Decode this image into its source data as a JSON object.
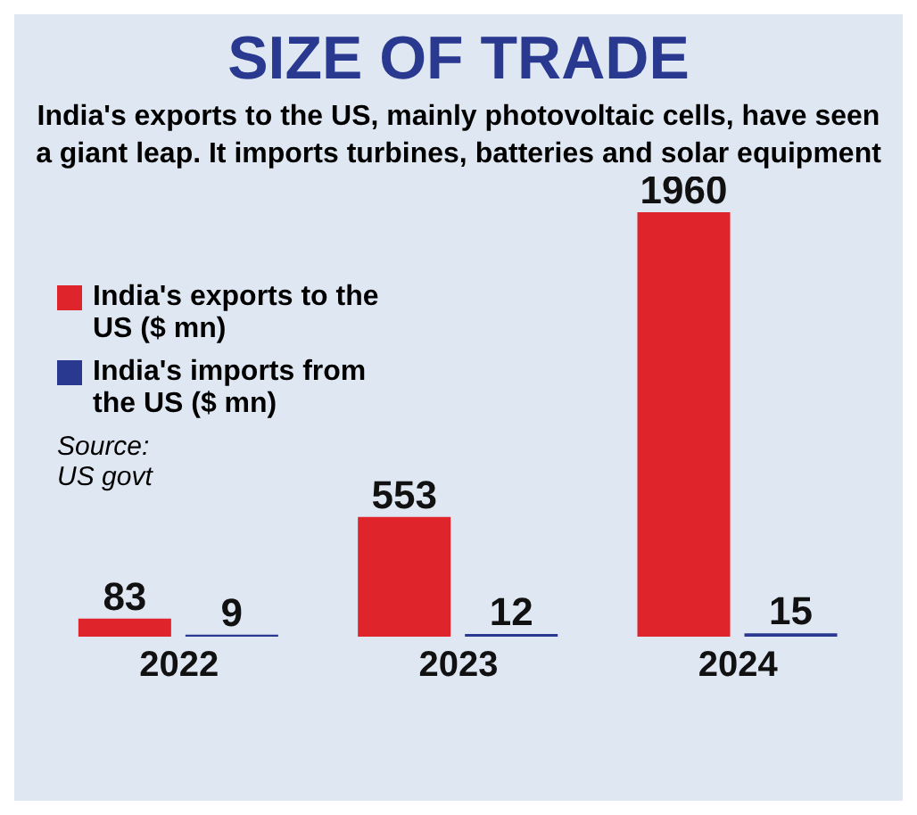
{
  "chart_data": {
    "type": "bar",
    "title": "SIZE OF TRADE",
    "subtitle": "India's exports to the US, mainly photovoltaic cells, have seen a giant leap. It imports turbines, batteries and solar equipment",
    "categories": [
      "2022",
      "2023",
      "2024"
    ],
    "series": [
      {
        "name": "India's exports to the US ($ mn)",
        "color": "#e0242b",
        "values": [
          83,
          553,
          1960
        ]
      },
      {
        "name": "India's imports from the US ($ mn)",
        "color": "#2a3990",
        "values": [
          9,
          12,
          15
        ]
      }
    ],
    "data_labels": true,
    "legend": "top left",
    "annotations": [
      "Source: US govt"
    ]
  }
}
